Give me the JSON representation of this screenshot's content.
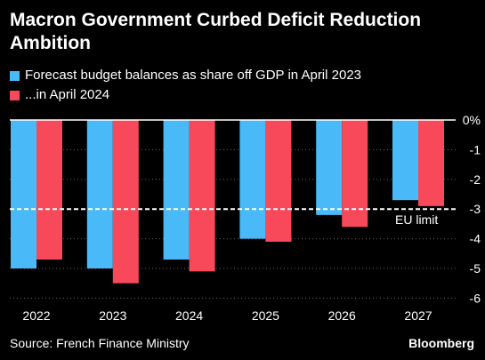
{
  "title": "Macron Government Curbed Deficit Reduction Ambition",
  "legend": [
    {
      "label": "Forecast budget balances as share off GDP in April 2023",
      "color": "#4ab9f7"
    },
    {
      "label": "...in April 2024",
      "color": "#f8495b"
    }
  ],
  "source": "Source: French Finance Ministry",
  "brand": "Bloomberg",
  "chart_data": {
    "type": "bar",
    "categories": [
      "2022",
      "2023",
      "2024",
      "2025",
      "2026",
      "2027"
    ],
    "series": [
      {
        "name": "Forecast budget balances as share off GDP in April 2023",
        "values": [
          -5.0,
          -5.0,
          -4.7,
          -4.0,
          -3.2,
          -2.7
        ],
        "color": "#4ab9f7"
      },
      {
        "name": "...in April 2024",
        "values": [
          -4.7,
          -5.5,
          -5.1,
          -4.1,
          -3.6,
          -2.9
        ],
        "color": "#f8495b"
      }
    ],
    "ylim": [
      -6.5,
      0
    ],
    "yticks": [
      0,
      -1,
      -2,
      -3,
      -4,
      -5,
      -6
    ],
    "ytick_labels": [
      "0%",
      "-1",
      "-2",
      "-3",
      "-4",
      "-5",
      "-6"
    ],
    "reference_line": {
      "value": -3,
      "label": "EU limit",
      "style": "dashed"
    },
    "grid": "horizontal dotted",
    "xlabel": "",
    "ylabel": ""
  }
}
